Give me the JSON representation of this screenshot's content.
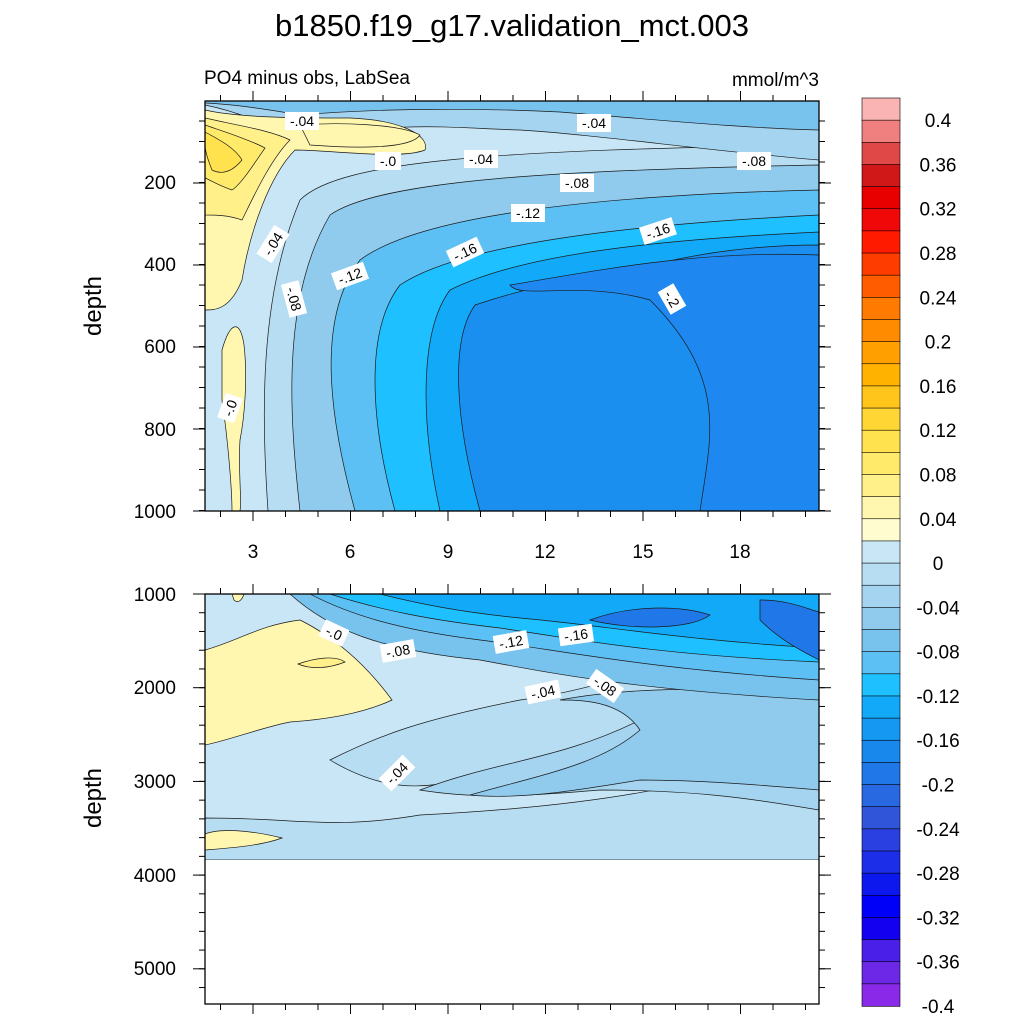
{
  "chart_data": {
    "type": "contour",
    "title": "b1850.f19_g17.validation_mct.003",
    "subtitle_left": "PO4 minus obs, LabSea",
    "subtitle_right": "mmol/m^3",
    "colorbar": {
      "labels": [
        "0.4",
        "0.36",
        "0.32",
        "0.28",
        "0.24",
        "0.2",
        "0.16",
        "0.12",
        "0.08",
        "0.04",
        "0",
        "-0.04",
        "-0.08",
        "-0.12",
        "-0.16",
        "-0.2",
        "-0.24",
        "-0.28",
        "-0.32",
        "-0.36",
        "-0.4"
      ],
      "colors": [
        "#fbb4b4",
        "#f08080",
        "#e04848",
        "#d01818",
        "#e80000",
        "#f00808",
        "#ff1a00",
        "#ff3c00",
        "#ff5c00",
        "#ff7a00",
        "#ff8c00",
        "#ffa000",
        "#ffb300",
        "#ffc51a",
        "#ffd633",
        "#ffe24d",
        "#ffea6a",
        "#fff08a",
        "#fff7b0",
        "#fffdd0",
        "#c8e6f5",
        "#b6ddf2",
        "#a5d4f0",
        "#90cbee",
        "#78c2ee",
        "#5cc0f5",
        "#1ec0ff",
        "#12aaf8",
        "#1498f2",
        "#1888ec",
        "#2078e8",
        "#2868e0",
        "#3055d8",
        "#2a40e0",
        "#1c2ee8",
        "#0c18ee",
        "#0000f8",
        "#1400f0",
        "#4a20e8",
        "#6c28e6",
        "#8a2ae8"
      ]
    },
    "panels": [
      {
        "name": "upper",
        "xlabel": "",
        "ylabel": "depth",
        "xticks": [
          "3",
          "6",
          "9",
          "12",
          "15",
          "18"
        ],
        "yticks": [
          "200",
          "400",
          "600",
          "800",
          "1000"
        ],
        "contour_labels": [
          "-.04",
          "-.04",
          "-.0",
          "-.04",
          "-.08",
          "-.08",
          "-.12",
          "-.04",
          "-.16",
          "-.16",
          "-.12",
          "-.08",
          "-.2",
          "-.0"
        ]
      },
      {
        "name": "lower",
        "xlabel": "",
        "ylabel": "depth",
        "yticks": [
          "1000",
          "2000",
          "3000",
          "4000",
          "5000"
        ],
        "contour_labels": [
          "-.0",
          "-.08",
          "-.12",
          "-.16",
          "-.04",
          "-.08",
          "-.04"
        ]
      }
    ]
  }
}
